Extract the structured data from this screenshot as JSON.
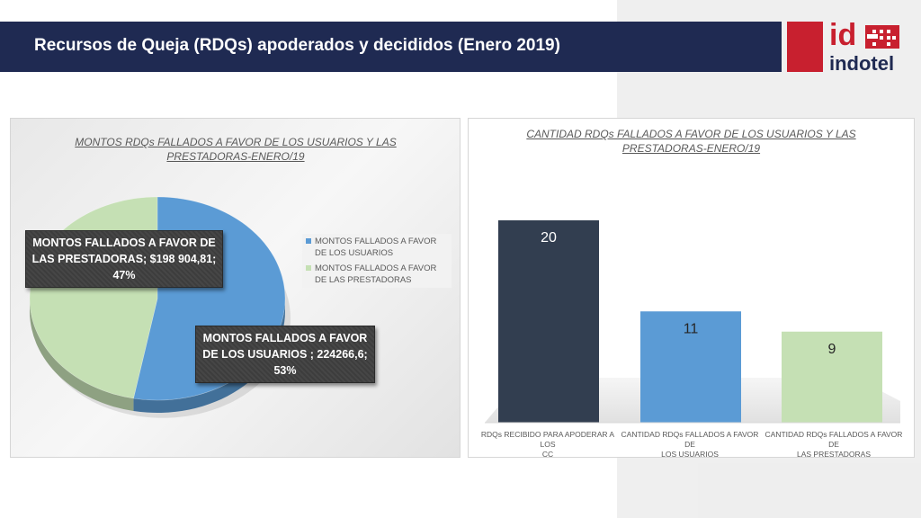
{
  "header": {
    "title": "Recursos de Queja (RDQs) apoderados y decididos (Enero 2019)",
    "logo_text_top": "id",
    "logo_text_bottom": "indotel"
  },
  "colors": {
    "navy": "#1f2a52",
    "brand_red": "#c8202f",
    "bar_dark": "#323e50",
    "bar_blue": "#5b9bd5",
    "bar_green": "#c5e0b4"
  },
  "chart_data": [
    {
      "type": "pie",
      "title": "MONTOS RDQs FALLADOS A FAVOR DE LOS  USUARIOS Y LAS PRESTADORAS-ENERO/19",
      "title_lines": [
        "MONTOS RDQs FALLADOS A FAVOR DE LOS  USUARIOS Y LAS",
        "PRESTADORAS-ENERO/19"
      ],
      "slices": [
        {
          "name": "MONTOS  FALLADOS A FAVOR DE LOS USUARIOS",
          "value": 224266.6,
          "percent": 53,
          "color": "#5b9bd5",
          "label_lines": [
            "MONTOS  FALLADOS A FAVOR",
            "DE LOS USUARIOS ; 224266,6;",
            "53%"
          ]
        },
        {
          "name": "MONTOS FALLADOS  A FAVOR DE LAS PRESTADORAS",
          "value": 198904.81,
          "percent": 47,
          "color": "#c5e0b4",
          "label_lines": [
            "MONTOS FALLADOS  A FAVOR DE",
            "LAS PRESTADORAS; $198 904,81;",
            "47%"
          ]
        }
      ],
      "legend": [
        {
          "label": "MONTOS  FALLADOS A FAVOR DE LOS USUARIOS",
          "color": "#5b9bd5"
        },
        {
          "label": "MONTOS FALLADOS  A FAVOR DE LAS PRESTADORAS",
          "color": "#c5e0b4"
        }
      ],
      "legend_position": "right"
    },
    {
      "type": "bar",
      "title": "CANTIDAD RDQs FALLADOS A FAVOR DE LOS USUARIOS Y LAS PRESTADORAS-ENERO/19",
      "title_lines": [
        "CANTIDAD RDQs FALLADOS A FAVOR DE LOS USUARIOS Y LAS",
        "PRESTADORAS-ENERO/19"
      ],
      "categories": [
        "RDQs RECIBIDO PARA APODERAR A LOS CC",
        "CANTIDAD RDQs FALLADOS A FAVOR DE LOS USUARIOS",
        "CANTIDAD RDQs FALLADOS A FAVOR DE LAS PRESTADORAS"
      ],
      "category_lines": [
        [
          "RDQs RECIBIDO PARA APODERAR A LOS",
          "CC"
        ],
        [
          "CANTIDAD RDQs FALLADOS A FAVOR DE",
          "LOS USUARIOS"
        ],
        [
          "CANTIDAD RDQs FALLADOS A FAVOR DE",
          "LAS PRESTADORAS"
        ]
      ],
      "values": [
        20,
        11,
        9
      ],
      "colors": [
        "#323e50",
        "#5b9bd5",
        "#c5e0b4"
      ],
      "ylim": [
        0,
        20
      ],
      "grid": false
    }
  ]
}
